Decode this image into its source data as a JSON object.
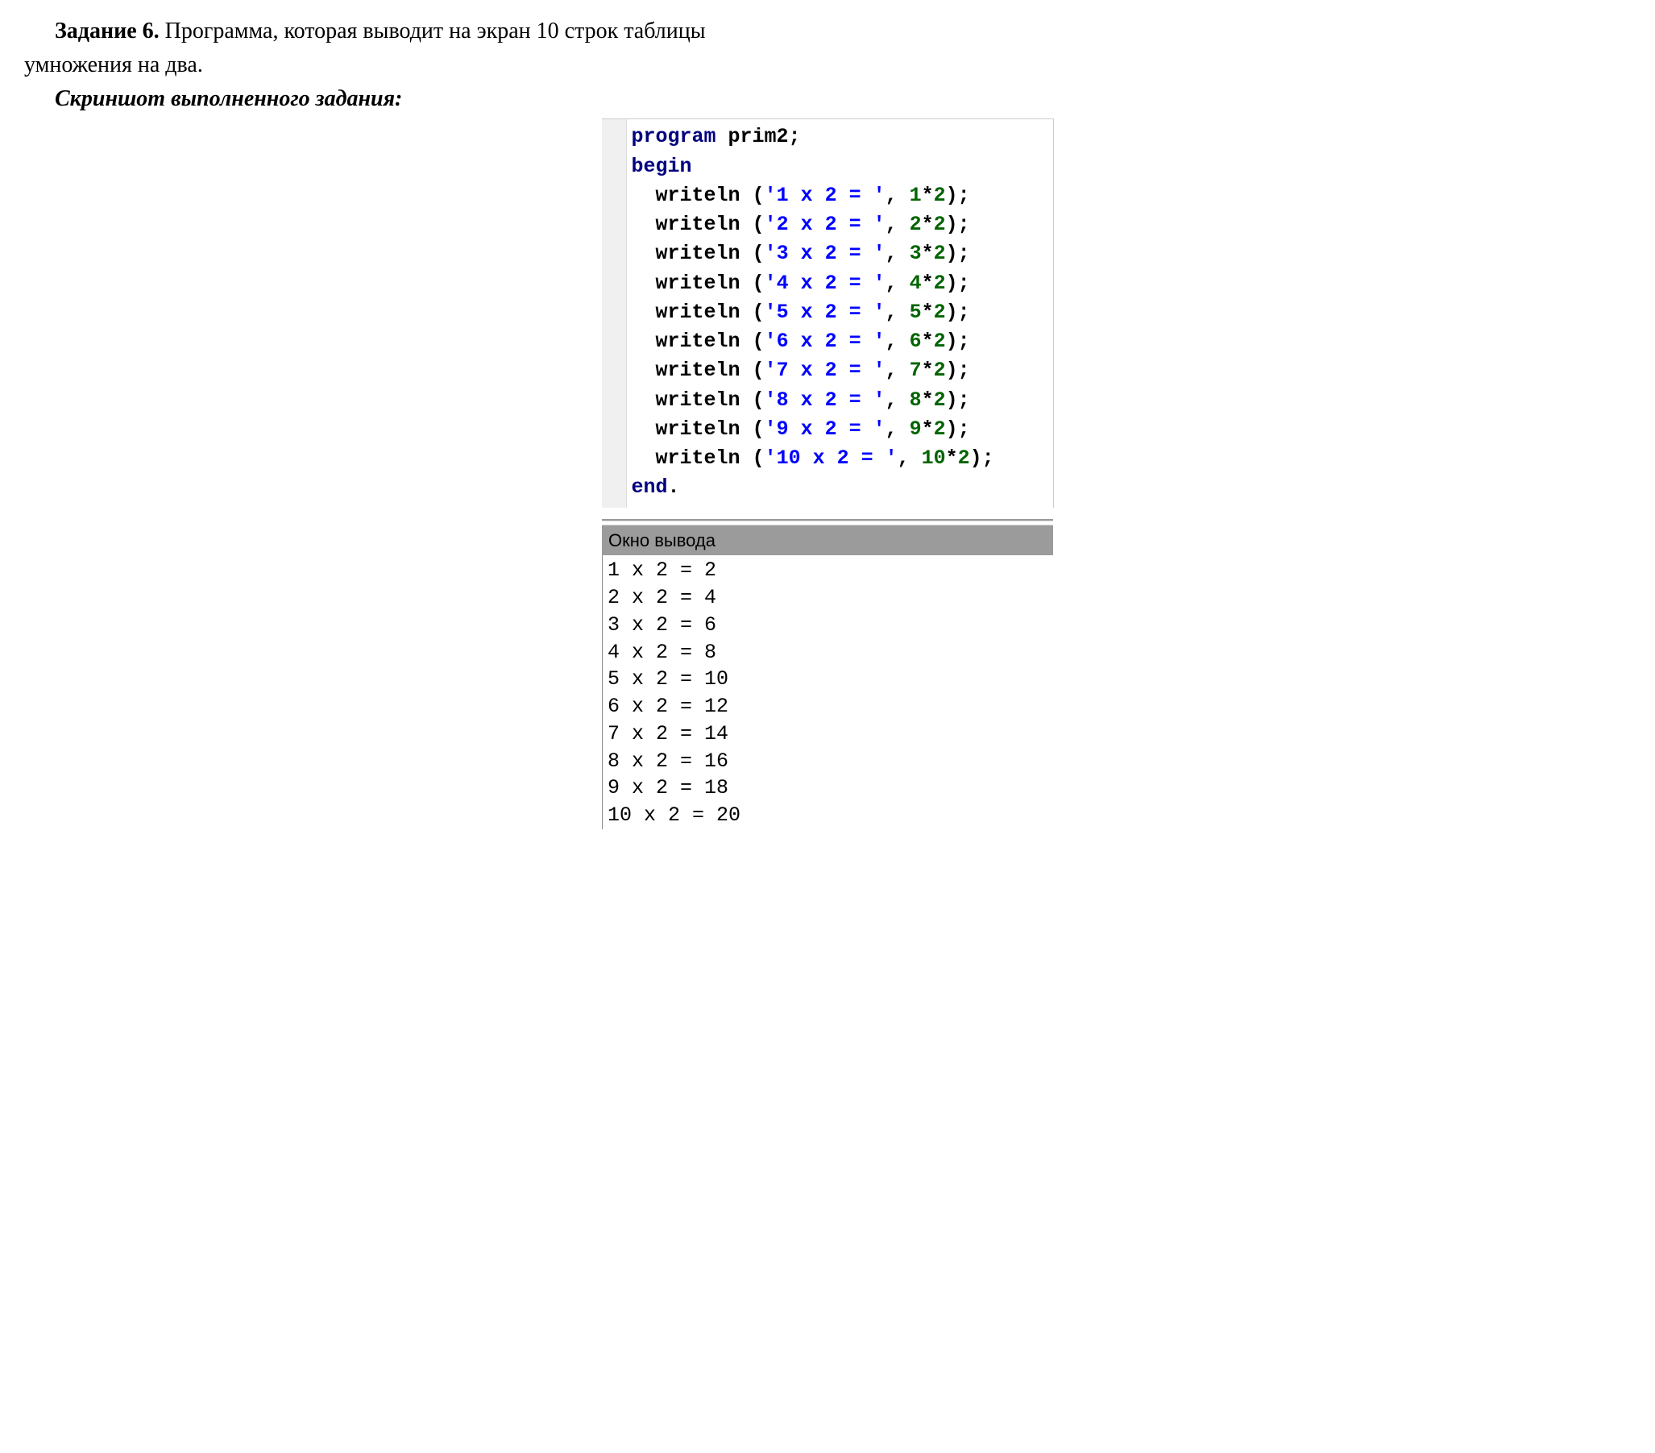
{
  "task": {
    "label": "Задание 6.",
    "text_part1": " Программа, которая выводит на экран 10 строк таблицы",
    "text_line2": "умножения на два."
  },
  "screenshot_label": "Скриншот выполненного задания:",
  "code": {
    "program_kw": "program",
    "program_name": " prim2",
    "semicolon": ";",
    "begin_kw": "begin",
    "end_kw": "end",
    "dot": ".",
    "fn": "writeln",
    "open": " (",
    "comma_sp": ", ",
    "close": ")",
    "star": "*",
    "lines": [
      {
        "str": "'1 x 2 = '",
        "a": "1",
        "b": "2"
      },
      {
        "str": "'2 x 2 = '",
        "a": "2",
        "b": "2"
      },
      {
        "str": "'3 x 2 = '",
        "a": "3",
        "b": "2"
      },
      {
        "str": "'4 x 2 = '",
        "a": "4",
        "b": "2"
      },
      {
        "str": "'5 x 2 = '",
        "a": "5",
        "b": "2"
      },
      {
        "str": "'6 x 2 = '",
        "a": "6",
        "b": "2"
      },
      {
        "str": "'7 x 2 = '",
        "a": "7",
        "b": "2"
      },
      {
        "str": "'8 x 2 = '",
        "a": "8",
        "b": "2"
      },
      {
        "str": "'9 x 2 = '",
        "a": "9",
        "b": "2"
      },
      {
        "str": "'10 x 2 = '",
        "a": "10",
        "b": "2"
      }
    ]
  },
  "output": {
    "title": "Окно вывода",
    "lines": [
      "1 x 2 = 2",
      "2 x 2 = 4",
      "3 x 2 = 6",
      "4 x 2 = 8",
      "5 x 2 = 10",
      "6 x 2 = 12",
      "7 x 2 = 14",
      "8 x 2 = 16",
      "9 x 2 = 18",
      "10 x 2 = 20"
    ]
  }
}
